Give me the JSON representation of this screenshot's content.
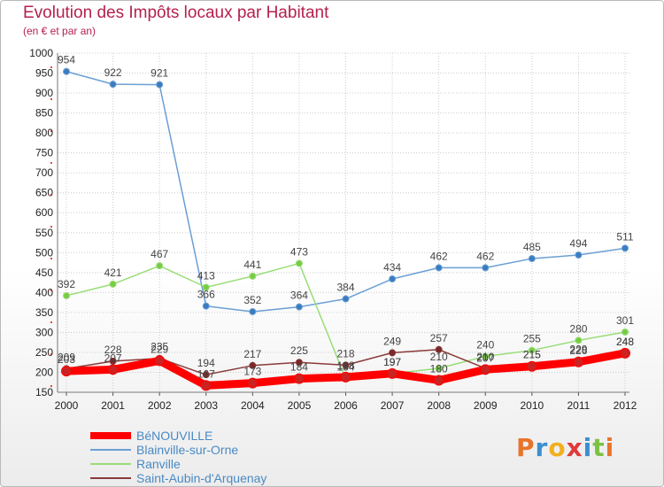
{
  "header": {
    "title": "Evolution des Impôts locaux par Habitant",
    "subtitle": "(en € et par an)"
  },
  "logo": {
    "text": "Proxiti",
    "letters": [
      {
        "char": "P",
        "color": "#e8742a"
      },
      {
        "char": "r",
        "color": "#3a8fd0"
      },
      {
        "char": "o",
        "color": "#f2b01e"
      },
      {
        "char": "x",
        "color": "#e03a3a"
      },
      {
        "char": "i",
        "color": "#3a8fd0"
      },
      {
        "char": "t",
        "color": "#7cc242"
      },
      {
        "char": "i",
        "color": "#e8742a"
      }
    ]
  },
  "colors": {
    "title": "#b5204e",
    "grid": "#cccccc",
    "axis_marker": "#ff0000"
  },
  "chart_data": {
    "type": "line",
    "x": [
      "2000",
      "2001",
      "2002",
      "2003",
      "2004",
      "2005",
      "2006",
      "2007",
      "2008",
      "2009",
      "2010",
      "2011",
      "2012"
    ],
    "yticks": [
      150,
      200,
      250,
      300,
      350,
      400,
      450,
      500,
      550,
      600,
      650,
      700,
      750,
      800,
      850,
      900,
      950,
      1000
    ],
    "ylim": [
      150,
      1000
    ],
    "grid": true,
    "legend_position": "bottom-left",
    "series": [
      {
        "name": "BéNOUVILLE",
        "color": "#ff0000",
        "marker_fill": "#cc2222",
        "width": 9,
        "values": [
          203,
          207,
          229,
          167,
          173,
          184,
          188,
          197,
          180,
          207,
          215,
          226,
          248
        ]
      },
      {
        "name": "Blainville-sur-Orne",
        "color": "#6a9fd4",
        "marker_fill": "#3b7cc0",
        "width": 1.5,
        "values": [
          954,
          922,
          921,
          366,
          352,
          364,
          384,
          434,
          462,
          462,
          485,
          494,
          511
        ]
      },
      {
        "name": "Ranville",
        "color": "#99dd77",
        "marker_fill": "#77cc44",
        "width": 1.5,
        "values": [
          392,
          421,
          467,
          413,
          441,
          473,
          184,
          197,
          210,
          240,
          255,
          280,
          301
        ]
      },
      {
        "name": "Saint-Aubin-d'Arquenay",
        "color": "#8b3a3a",
        "marker_fill": "#7a2828",
        "width": 1.5,
        "values": [
          209,
          228,
          235,
          194,
          217,
          225,
          218,
          249,
          257,
          210,
          215,
          229,
          248
        ]
      }
    ]
  }
}
